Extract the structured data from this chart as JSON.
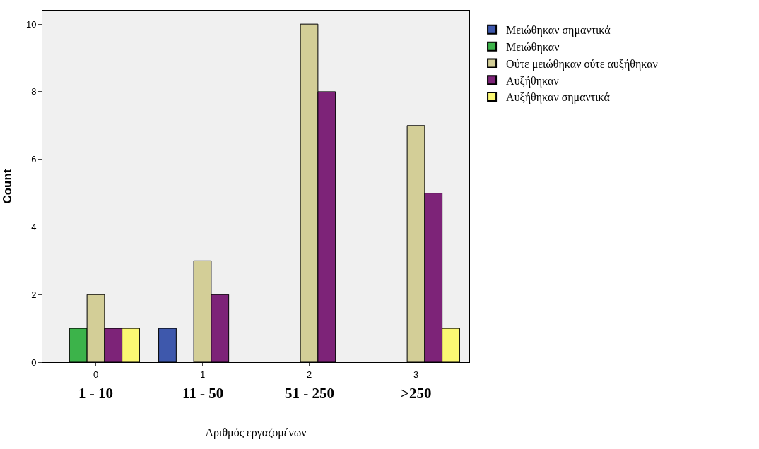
{
  "chart_data": {
    "type": "bar",
    "categories": [
      "0",
      "1",
      "2",
      "3"
    ],
    "series": [
      {
        "name": "Μειώθηκαν σημαντικά",
        "color": "#3e58ac",
        "values": [
          null,
          1,
          null,
          null
        ]
      },
      {
        "name": "Μειώθηκαν",
        "color": "#3cb34a",
        "values": [
          1,
          null,
          null,
          null
        ]
      },
      {
        "name": "Ούτε μειώθηκαν ούτε αυξήθηκαν",
        "color": "#d3ce97",
        "values": [
          2,
          3,
          10,
          7
        ]
      },
      {
        "name": "Αυξήθηκαν",
        "color": "#7d2378",
        "values": [
          1,
          2,
          8,
          5
        ]
      },
      {
        "name": "Αυξήθηκαν σημαντικά",
        "color": "#fbf873",
        "values": [
          1,
          null,
          null,
          1
        ]
      }
    ],
    "ylim": [
      0,
      10.4
    ],
    "yticks": [
      0,
      2,
      4,
      6,
      8,
      10
    ],
    "xlabel": "Αριθμός εργαζομένων",
    "ylabel": "Count",
    "annotations": [
      "1 - 10",
      "11 - 50",
      "51 - 250",
      ">250"
    ],
    "grid": false,
    "legend": "top right"
  }
}
